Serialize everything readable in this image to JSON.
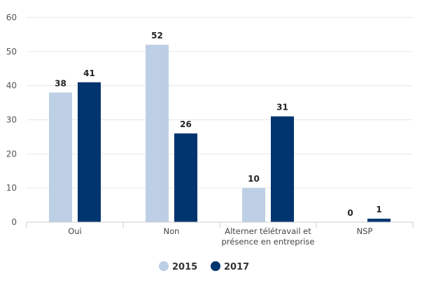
{
  "chart_data": {
    "type": "bar",
    "categories": [
      [
        "Oui"
      ],
      [
        "Non"
      ],
      [
        "Alterner télétravail et",
        "présence en entreprise"
      ],
      [
        "NSP"
      ]
    ],
    "series": [
      {
        "name": "2015",
        "color": "#bccfe5",
        "values": [
          38,
          52,
          10,
          0
        ]
      },
      {
        "name": "2017",
        "color": "#00356f",
        "values": [
          41,
          26,
          31,
          1
        ]
      }
    ],
    "ylim": [
      0,
      60
    ],
    "yticks": [
      0,
      10,
      20,
      30,
      40,
      50,
      60
    ],
    "grid": true,
    "legend": "bottom-center",
    "data_labels": true
  }
}
